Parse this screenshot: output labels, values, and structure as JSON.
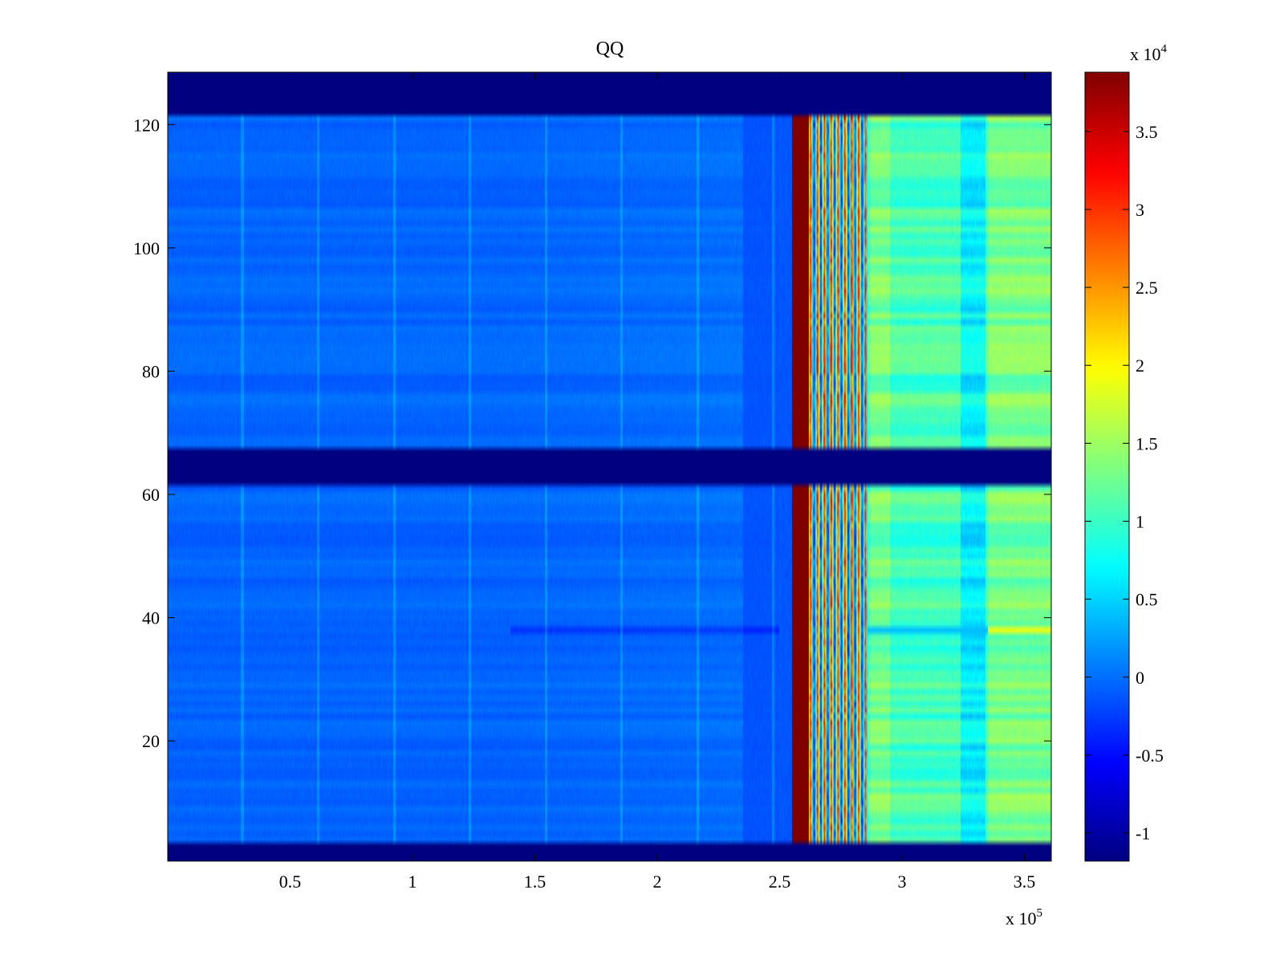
{
  "chart_data": {
    "type": "heatmap",
    "title": "QQ",
    "colormap": "jet",
    "x": {
      "lim": [
        0,
        361000
      ],
      "ticks": [
        50000,
        100000,
        150000,
        200000,
        250000,
        300000,
        350000
      ],
      "tick_labels": [
        "0.5",
        "1",
        "1.5",
        "2",
        "2.5",
        "3",
        "3.5"
      ],
      "exponent_base": "x 10",
      "exponent_power": "5"
    },
    "y": {
      "lim": [
        0.5,
        128.5
      ],
      "ticks": [
        20,
        40,
        60,
        80,
        100,
        120
      ],
      "tick_labels": [
        "20",
        "40",
        "60",
        "80",
        "100",
        "120"
      ]
    },
    "colorbar": {
      "lim": [
        -11800,
        38800
      ],
      "ticks": [
        -10000,
        -5000,
        0,
        5000,
        10000,
        15000,
        20000,
        25000,
        30000,
        35000
      ],
      "tick_labels": [
        "-1",
        "-0.5",
        "0",
        "0.5",
        "1",
        "1.5",
        "2",
        "2.5",
        "3",
        "3.5"
      ],
      "exponent_base": "x 10",
      "exponent_power": "4"
    },
    "empty_row_bands": [
      [
        0.5,
        3.5
      ],
      [
        61.5,
        67.5
      ],
      [
        121.5,
        128.5
      ]
    ],
    "background_value": -11800,
    "regions": [
      {
        "x_range": [
          0,
          250000
        ],
        "approx_value": 0,
        "description": "low values"
      },
      {
        "x_range": [
          255000,
          262000
        ],
        "approx_value": 38800,
        "description": "saturated vertical band"
      },
      {
        "x_range": [
          262000,
          285000
        ],
        "approx_value": 20000,
        "description": "high oscillating stripes"
      },
      {
        "x_range": [
          285000,
          361000
        ],
        "approx_value": 10000,
        "description": "medium values"
      }
    ]
  }
}
